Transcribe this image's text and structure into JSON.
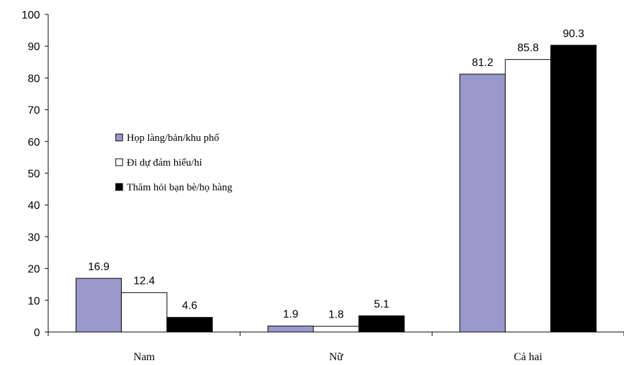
{
  "chart_data": {
    "type": "bar",
    "categories": [
      "Nam",
      "Nữ",
      "Cả hai"
    ],
    "series": [
      {
        "name": "Họp làng/bản/khu phố",
        "values": [
          16.9,
          1.9,
          81.2
        ],
        "color": "#9999cc"
      },
      {
        "name": "Đi dự đám hiếu/hỉ",
        "values": [
          12.4,
          1.8,
          85.8
        ],
        "color": "#ffffff"
      },
      {
        "name": "Thăm hỏi bạn bè/họ hàng",
        "values": [
          4.6,
          5.1,
          90.3
        ],
        "color": "#000000"
      }
    ],
    "value_labels": [
      [
        "16.9",
        "1.9",
        "81.2"
      ],
      [
        "12.4",
        "1.8",
        "85.8"
      ],
      [
        "4.6",
        "5.1",
        "90.3"
      ]
    ],
    "ylim": [
      0,
      100
    ],
    "yticks": [
      "0",
      "10",
      "20",
      "30",
      "40",
      "50",
      "60",
      "70",
      "80",
      "90",
      "100"
    ],
    "title": "",
    "xlabel": "",
    "ylabel": "",
    "legend_position": "left-center",
    "grid": false
  }
}
